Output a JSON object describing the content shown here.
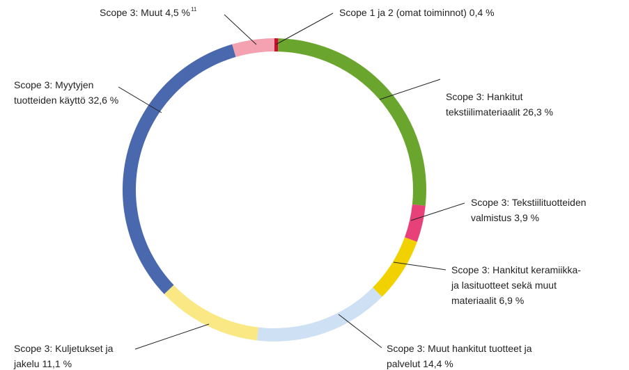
{
  "chart_data": {
    "type": "donut",
    "categories": [
      "Scope 1 ja 2 (omat toiminnot)",
      "Scope 3: Hankitut tekstiilimateriaalit",
      "Scope 3: Tekstiilituotteiden valmistus",
      "Scope 3: Hankitut keramiikka- ja lasituotteet sekä muut materiaalit",
      "Scope 3: Muut hankitut tuotteet ja palvelut",
      "Scope 3: Kuljetukset ja jakelu",
      "Scope 3: Myytyjen tuotteiden käyttö",
      "Scope 3: Muut"
    ],
    "values": [
      0.4,
      26.3,
      3.9,
      6.9,
      14.4,
      11.1,
      32.6,
      4.5
    ],
    "value_labels": [
      "0,4 %",
      "26,3 %",
      "3,9 %",
      "6,9 %",
      "14,4 %",
      "11,1 %",
      "32,6 %",
      "4,5 %"
    ],
    "colors": [
      "#c8102e",
      "#6aa52e",
      "#e8417a",
      "#f2d100",
      "#cde0f4",
      "#f9e884",
      "#4a68ad",
      "#f4a1b1"
    ],
    "footnote": {
      "index": 7,
      "text": "11"
    }
  }
}
